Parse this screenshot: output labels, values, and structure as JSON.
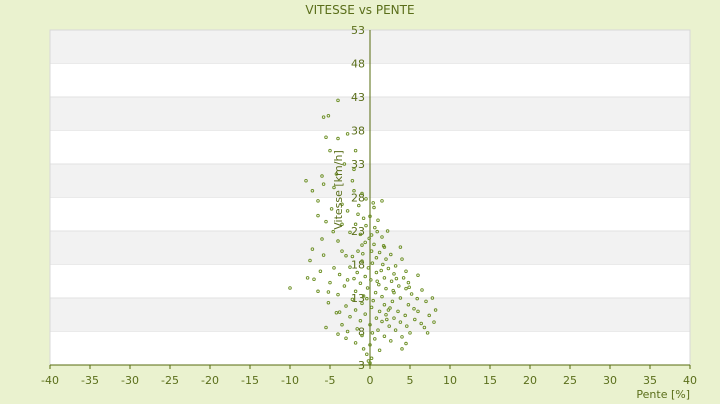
{
  "chart_data": {
    "type": "scatter",
    "title": "VITESSE vs PENTE",
    "xlabel": "Pente [%]",
    "ylabel": "Vitesse [km/h]",
    "xlim": [
      -40,
      40
    ],
    "ylim": [
      3,
      53
    ],
    "x_ticks": [
      -40,
      -35,
      -30,
      -25,
      -20,
      -15,
      -10,
      -5,
      0,
      5,
      10,
      15,
      20,
      25,
      30,
      35,
      40
    ],
    "y_ticks": [
      3,
      8,
      13,
      18,
      23,
      28,
      33,
      38,
      43,
      48,
      53
    ],
    "grid": "horizontal alternating bands",
    "colors": {
      "background": "#eaf2cf",
      "plot_area": "#ffffff",
      "band": "#f2f2f2",
      "text": "#5a6e1a",
      "axis": "#556b0e",
      "marker": "#6b8e23"
    },
    "series": [
      {
        "points": [
          [
            -5.8,
            40.0
          ],
          [
            -5.2,
            40.2
          ],
          [
            -4.0,
            42.5
          ],
          [
            -5.5,
            37.0
          ],
          [
            -4.0,
            36.8
          ],
          [
            -2.8,
            37.5
          ],
          [
            -5.0,
            35.0
          ],
          [
            -1.8,
            35.0
          ],
          [
            -3.2,
            33.0
          ],
          [
            -2.0,
            32.2
          ],
          [
            -4.2,
            31.5
          ],
          [
            -6.0,
            31.2
          ],
          [
            -8.0,
            30.5
          ],
          [
            -5.8,
            30.0
          ],
          [
            -4.5,
            29.5
          ],
          [
            -2.0,
            29.0
          ],
          [
            -1.0,
            28.6
          ],
          [
            -7.2,
            29.0
          ],
          [
            -6.5,
            27.5
          ],
          [
            -3.5,
            27.0
          ],
          [
            -0.5,
            27.8
          ],
          [
            1.5,
            27.5
          ],
          [
            0.5,
            26.5
          ],
          [
            -4.8,
            26.3
          ],
          [
            -2.8,
            26.0
          ],
          [
            -1.5,
            25.5
          ],
          [
            0.0,
            25.2
          ],
          [
            1.0,
            24.6
          ],
          [
            -5.5,
            24.4
          ],
          [
            -3.5,
            24.0
          ],
          [
            -1.8,
            24.0
          ],
          [
            -0.5,
            23.8
          ],
          [
            0.6,
            23.5
          ],
          [
            2.2,
            23.0
          ],
          [
            -2.5,
            22.8
          ],
          [
            -1.2,
            22.5
          ],
          [
            0.2,
            22.4
          ],
          [
            1.5,
            22.1
          ],
          [
            -6.0,
            21.8
          ],
          [
            -4.0,
            21.5
          ],
          [
            -0.6,
            21.3
          ],
          [
            0.5,
            21.0
          ],
          [
            1.8,
            20.6
          ],
          [
            3.8,
            20.6
          ],
          [
            -7.2,
            20.3
          ],
          [
            -3.5,
            20.0
          ],
          [
            -1.5,
            20.0
          ],
          [
            0.2,
            20.0
          ],
          [
            1.2,
            19.8
          ],
          [
            2.6,
            19.5
          ],
          [
            -5.8,
            19.4
          ],
          [
            -2.2,
            19.2
          ],
          [
            0.8,
            19.0
          ],
          [
            2.0,
            18.8
          ],
          [
            4.0,
            18.8
          ],
          [
            -7.5,
            18.6
          ],
          [
            -1.0,
            18.5
          ],
          [
            0.3,
            18.2
          ],
          [
            1.6,
            18.0
          ],
          [
            3.2,
            17.8
          ],
          [
            -4.5,
            17.5
          ],
          [
            -2.5,
            17.6
          ],
          [
            -0.2,
            17.5
          ],
          [
            2.3,
            17.4
          ],
          [
            4.5,
            17.0
          ],
          [
            -6.2,
            17.0
          ],
          [
            -1.6,
            16.8
          ],
          [
            0.8,
            16.8
          ],
          [
            3.0,
            16.6
          ],
          [
            6.0,
            16.4
          ],
          [
            -3.8,
            16.5
          ],
          [
            -0.6,
            16.2
          ],
          [
            1.8,
            16.0
          ],
          [
            4.2,
            16.0
          ],
          [
            -7.0,
            15.8
          ],
          [
            -2.8,
            15.7
          ],
          [
            0.1,
            15.7
          ],
          [
            2.7,
            15.5
          ],
          [
            4.8,
            15.3
          ],
          [
            -5.0,
            15.3
          ],
          [
            -1.2,
            15.2
          ],
          [
            1.1,
            15.0
          ],
          [
            3.6,
            14.8
          ],
          [
            -10.0,
            14.5
          ],
          [
            -3.2,
            14.8
          ],
          [
            -0.3,
            14.5
          ],
          [
            2.0,
            14.4
          ],
          [
            4.5,
            14.4
          ],
          [
            6.5,
            14.2
          ],
          [
            -6.5,
            14.0
          ],
          [
            -1.8,
            14.0
          ],
          [
            0.7,
            13.8
          ],
          [
            3.0,
            13.8
          ],
          [
            5.2,
            13.6
          ],
          [
            -4.0,
            13.5
          ],
          [
            -0.8,
            13.3
          ],
          [
            1.5,
            13.2
          ],
          [
            3.8,
            13.0
          ],
          [
            -2.2,
            12.8
          ],
          [
            0.4,
            12.6
          ],
          [
            2.8,
            12.5
          ],
          [
            7.0,
            12.5
          ],
          [
            -5.2,
            12.3
          ],
          [
            -1.0,
            12.2
          ],
          [
            1.8,
            12.0
          ],
          [
            4.8,
            12.0
          ],
          [
            -3.0,
            11.8
          ],
          [
            0.2,
            11.6
          ],
          [
            2.5,
            11.5
          ],
          [
            5.5,
            11.4
          ],
          [
            8.2,
            11.2
          ],
          [
            -1.8,
            11.2
          ],
          [
            1.2,
            11.0
          ],
          [
            3.5,
            11.0
          ],
          [
            6.0,
            11.0
          ],
          [
            -4.2,
            10.8
          ],
          [
            -0.6,
            10.6
          ],
          [
            2.0,
            10.5
          ],
          [
            4.4,
            10.4
          ],
          [
            7.4,
            10.4
          ],
          [
            -2.5,
            10.2
          ],
          [
            0.8,
            10.0
          ],
          [
            3.0,
            10.0
          ],
          [
            5.6,
            9.8
          ],
          [
            -1.2,
            9.6
          ],
          [
            1.5,
            9.5
          ],
          [
            3.8,
            9.4
          ],
          [
            8.0,
            9.4
          ],
          [
            -3.5,
            9.0
          ],
          [
            0.0,
            9.0
          ],
          [
            2.4,
            8.8
          ],
          [
            4.6,
            8.8
          ],
          [
            6.8,
            8.6
          ],
          [
            -5.5,
            8.6
          ],
          [
            -1.6,
            8.4
          ],
          [
            1.0,
            8.2
          ],
          [
            3.2,
            8.2
          ],
          [
            -2.8,
            8.0
          ],
          [
            0.3,
            7.8
          ],
          [
            5.0,
            7.8
          ],
          [
            7.2,
            7.8
          ],
          [
            -4.0,
            7.6
          ],
          [
            -1.0,
            7.4
          ],
          [
            1.8,
            7.3
          ],
          [
            4.0,
            7.2
          ],
          [
            -3.0,
            7.0
          ],
          [
            0.6,
            6.9
          ],
          [
            2.6,
            6.6
          ],
          [
            -1.8,
            6.3
          ],
          [
            4.5,
            6.2
          ],
          [
            0.0,
            6.0
          ],
          [
            -0.8,
            5.4
          ],
          [
            1.2,
            5.2
          ],
          [
            4.0,
            5.4
          ],
          [
            -0.4,
            4.6
          ],
          [
            0.2,
            4.0
          ],
          [
            -0.2,
            3.6
          ],
          [
            0.0,
            3.3
          ],
          [
            -6.5,
            25.3
          ],
          [
            -2.2,
            30.5
          ],
          [
            0.9,
            22.9
          ],
          [
            -0.9,
            19.6
          ],
          [
            1.4,
            17.1
          ],
          [
            2.9,
            14.1
          ],
          [
            -0.4,
            12.9
          ],
          [
            5.9,
            12.9
          ],
          [
            2.1,
            9.8
          ],
          [
            -2.0,
            15.9
          ],
          [
            6.4,
            9.2
          ],
          [
            -4.6,
            22.9
          ],
          [
            -1.4,
            26.8
          ],
          [
            -0.8,
            24.9
          ],
          [
            0.4,
            27.2
          ],
          [
            3.3,
            15.9
          ],
          [
            4.9,
            14.6
          ],
          [
            -3.0,
            19.3
          ],
          [
            -7.8,
            16.0
          ],
          [
            7.8,
            13.0
          ],
          [
            -0.1,
            21.9
          ],
          [
            1.7,
            20.8
          ],
          [
            -5.2,
            13.9
          ],
          [
            -3.8,
            10.9
          ],
          [
            0.9,
            15.5
          ],
          [
            2.3,
            11.2
          ],
          [
            -1.0,
            20.9
          ]
        ]
      }
    ]
  }
}
